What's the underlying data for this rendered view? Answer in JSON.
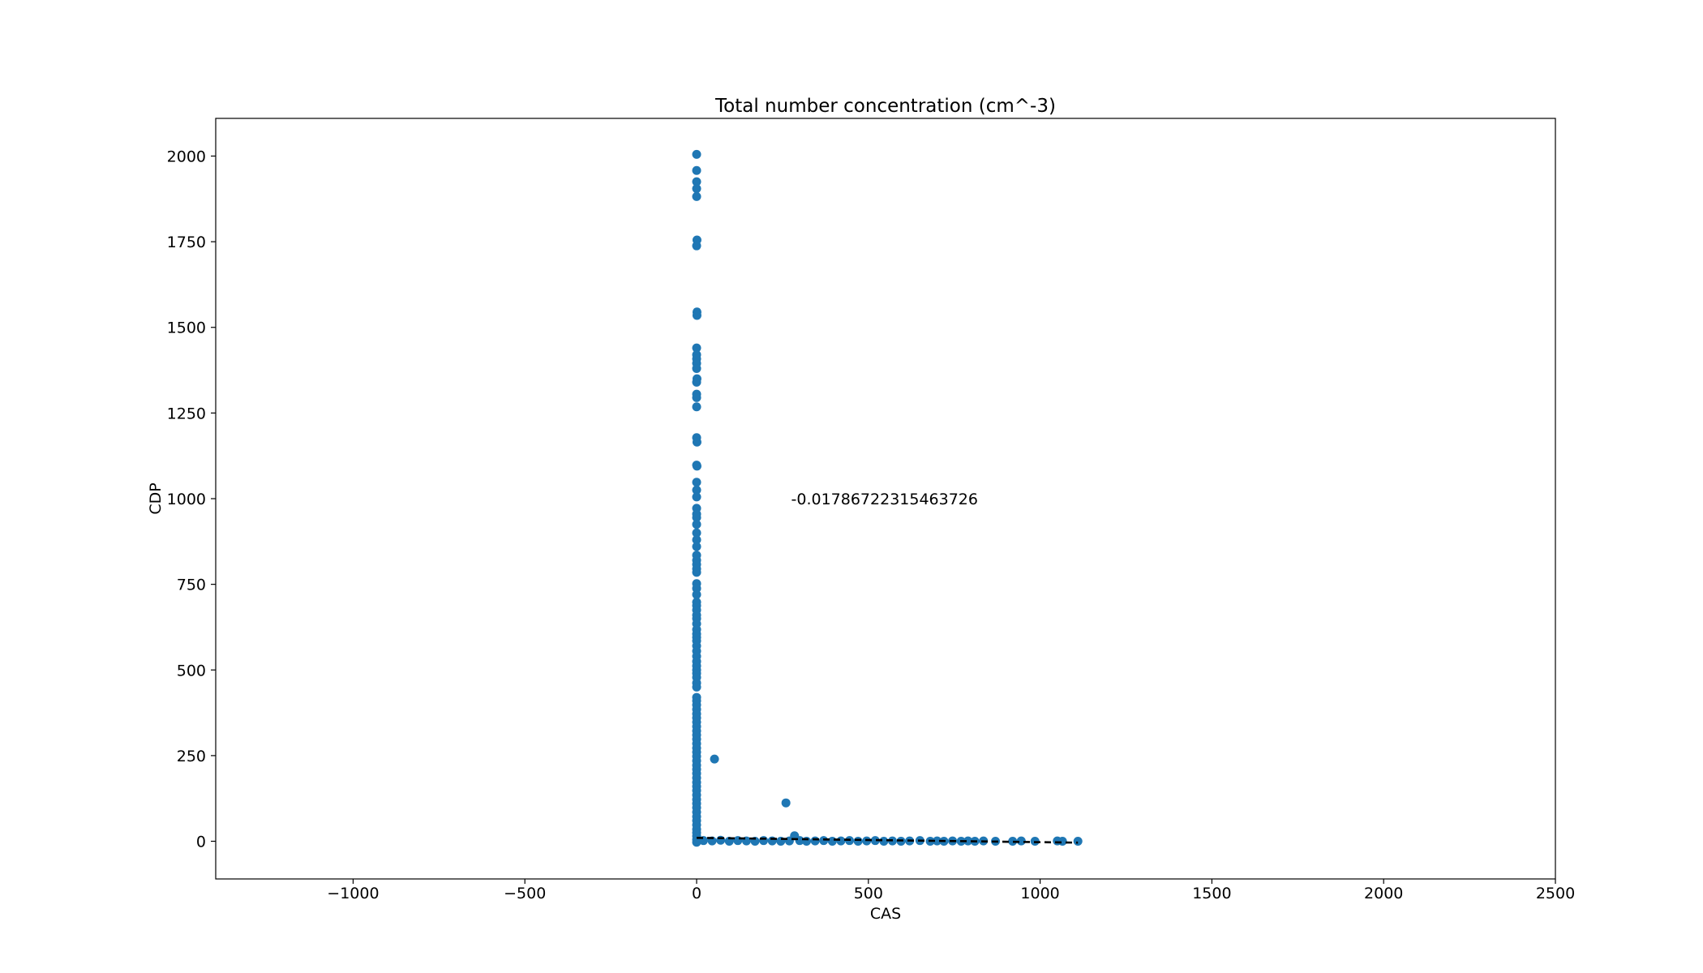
{
  "chart_data": {
    "type": "scatter",
    "title": "Total number concentration (cm^-3)",
    "xlabel": "CAS",
    "ylabel": "CDP",
    "xlim": [
      -1400,
      2500
    ],
    "ylim": [
      -110,
      2110
    ],
    "xticks": [
      -1000,
      -500,
      0,
      500,
      1000,
      1500,
      2000,
      2500
    ],
    "yticks": [
      0,
      250,
      500,
      750,
      1000,
      1250,
      1500,
      1750,
      2000
    ],
    "grid": false,
    "annotation": {
      "text": "-0.01786722315463726",
      "x": 275,
      "y": 1000
    },
    "colors": {
      "points": "#1f77b4",
      "fit_line": "#000000"
    },
    "fit_line": {
      "style": "dashed",
      "x": [
        0,
        1110
      ],
      "y": [
        10,
        -4
      ]
    },
    "series": [
      {
        "points": [
          [
            0,
            2005
          ],
          [
            0,
            1958
          ],
          [
            0,
            1925
          ],
          [
            0,
            1905
          ],
          [
            0,
            1882
          ],
          [
            1,
            1755
          ],
          [
            0,
            1738
          ],
          [
            1,
            1545
          ],
          [
            1,
            1535
          ],
          [
            0,
            1440
          ],
          [
            0,
            1420
          ],
          [
            0,
            1408
          ],
          [
            0,
            1395
          ],
          [
            0,
            1380
          ],
          [
            1,
            1350
          ],
          [
            0,
            1340
          ],
          [
            0,
            1305
          ],
          [
            0,
            1295
          ],
          [
            0,
            1268
          ],
          [
            0,
            1178
          ],
          [
            1,
            1165
          ],
          [
            0,
            1098
          ],
          [
            1,
            1095
          ],
          [
            0,
            1048
          ],
          [
            0,
            1025
          ],
          [
            0,
            1005
          ],
          [
            0,
            972
          ],
          [
            0,
            955
          ],
          [
            0,
            945
          ],
          [
            0,
            925
          ],
          [
            0,
            900
          ],
          [
            0,
            880
          ],
          [
            0,
            860
          ],
          [
            0,
            835
          ],
          [
            0,
            820
          ],
          [
            0,
            808
          ],
          [
            0,
            795
          ],
          [
            0,
            785
          ],
          [
            0,
            752
          ],
          [
            0,
            738
          ],
          [
            0,
            720
          ],
          [
            0,
            698
          ],
          [
            0,
            688
          ],
          [
            0,
            675
          ],
          [
            0,
            660
          ],
          [
            0,
            650
          ],
          [
            0,
            635
          ],
          [
            0,
            618
          ],
          [
            0,
            605
          ],
          [
            0,
            595
          ],
          [
            0,
            585
          ],
          [
            0,
            570
          ],
          [
            0,
            555
          ],
          [
            0,
            540
          ],
          [
            0,
            525
          ],
          [
            0,
            512
          ],
          [
            0,
            500
          ],
          [
            0,
            490
          ],
          [
            0,
            478
          ],
          [
            0,
            462
          ],
          [
            0,
            450
          ],
          [
            0,
            420
          ],
          [
            0,
            410
          ],
          [
            0,
            398
          ],
          [
            0,
            385
          ],
          [
            0,
            372
          ],
          [
            0,
            360
          ],
          [
            0,
            348
          ],
          [
            0,
            335
          ],
          [
            0,
            322
          ],
          [
            0,
            310
          ],
          [
            0,
            298
          ],
          [
            0,
            285
          ],
          [
            0,
            272
          ],
          [
            0,
            260
          ],
          [
            0,
            248
          ],
          [
            0,
            235
          ],
          [
            0,
            222
          ],
          [
            0,
            210
          ],
          [
            0,
            198
          ],
          [
            0,
            185
          ],
          [
            0,
            172
          ],
          [
            0,
            160
          ],
          [
            0,
            148
          ],
          [
            0,
            135
          ],
          [
            0,
            122
          ],
          [
            0,
            110
          ],
          [
            0,
            98
          ],
          [
            0,
            85
          ],
          [
            0,
            72
          ],
          [
            0,
            60
          ],
          [
            0,
            48
          ],
          [
            0,
            35
          ],
          [
            0,
            25
          ],
          [
            0,
            15
          ],
          [
            0,
            5
          ],
          [
            0,
            -3
          ],
          [
            52,
            240
          ],
          [
            260,
            112
          ],
          [
            285,
            16
          ],
          [
            20,
            2
          ],
          [
            45,
            1
          ],
          [
            70,
            3
          ],
          [
            95,
            0
          ],
          [
            120,
            2
          ],
          [
            145,
            1
          ],
          [
            170,
            0
          ],
          [
            195,
            2
          ],
          [
            220,
            1
          ],
          [
            245,
            0
          ],
          [
            270,
            1
          ],
          [
            300,
            2
          ],
          [
            320,
            0
          ],
          [
            345,
            1
          ],
          [
            370,
            2
          ],
          [
            395,
            0
          ],
          [
            420,
            1
          ],
          [
            445,
            2
          ],
          [
            470,
            0
          ],
          [
            495,
            1
          ],
          [
            520,
            2
          ],
          [
            545,
            0
          ],
          [
            570,
            1
          ],
          [
            595,
            0
          ],
          [
            620,
            1
          ],
          [
            650,
            2
          ],
          [
            680,
            0
          ],
          [
            700,
            1
          ],
          [
            720,
            0
          ],
          [
            745,
            1
          ],
          [
            770,
            0
          ],
          [
            790,
            1
          ],
          [
            810,
            0
          ],
          [
            835,
            1
          ],
          [
            870,
            0
          ],
          [
            920,
            0
          ],
          [
            945,
            1
          ],
          [
            985,
            0
          ],
          [
            1050,
            1
          ],
          [
            1065,
            0
          ],
          [
            1110,
            0
          ]
        ]
      }
    ]
  }
}
